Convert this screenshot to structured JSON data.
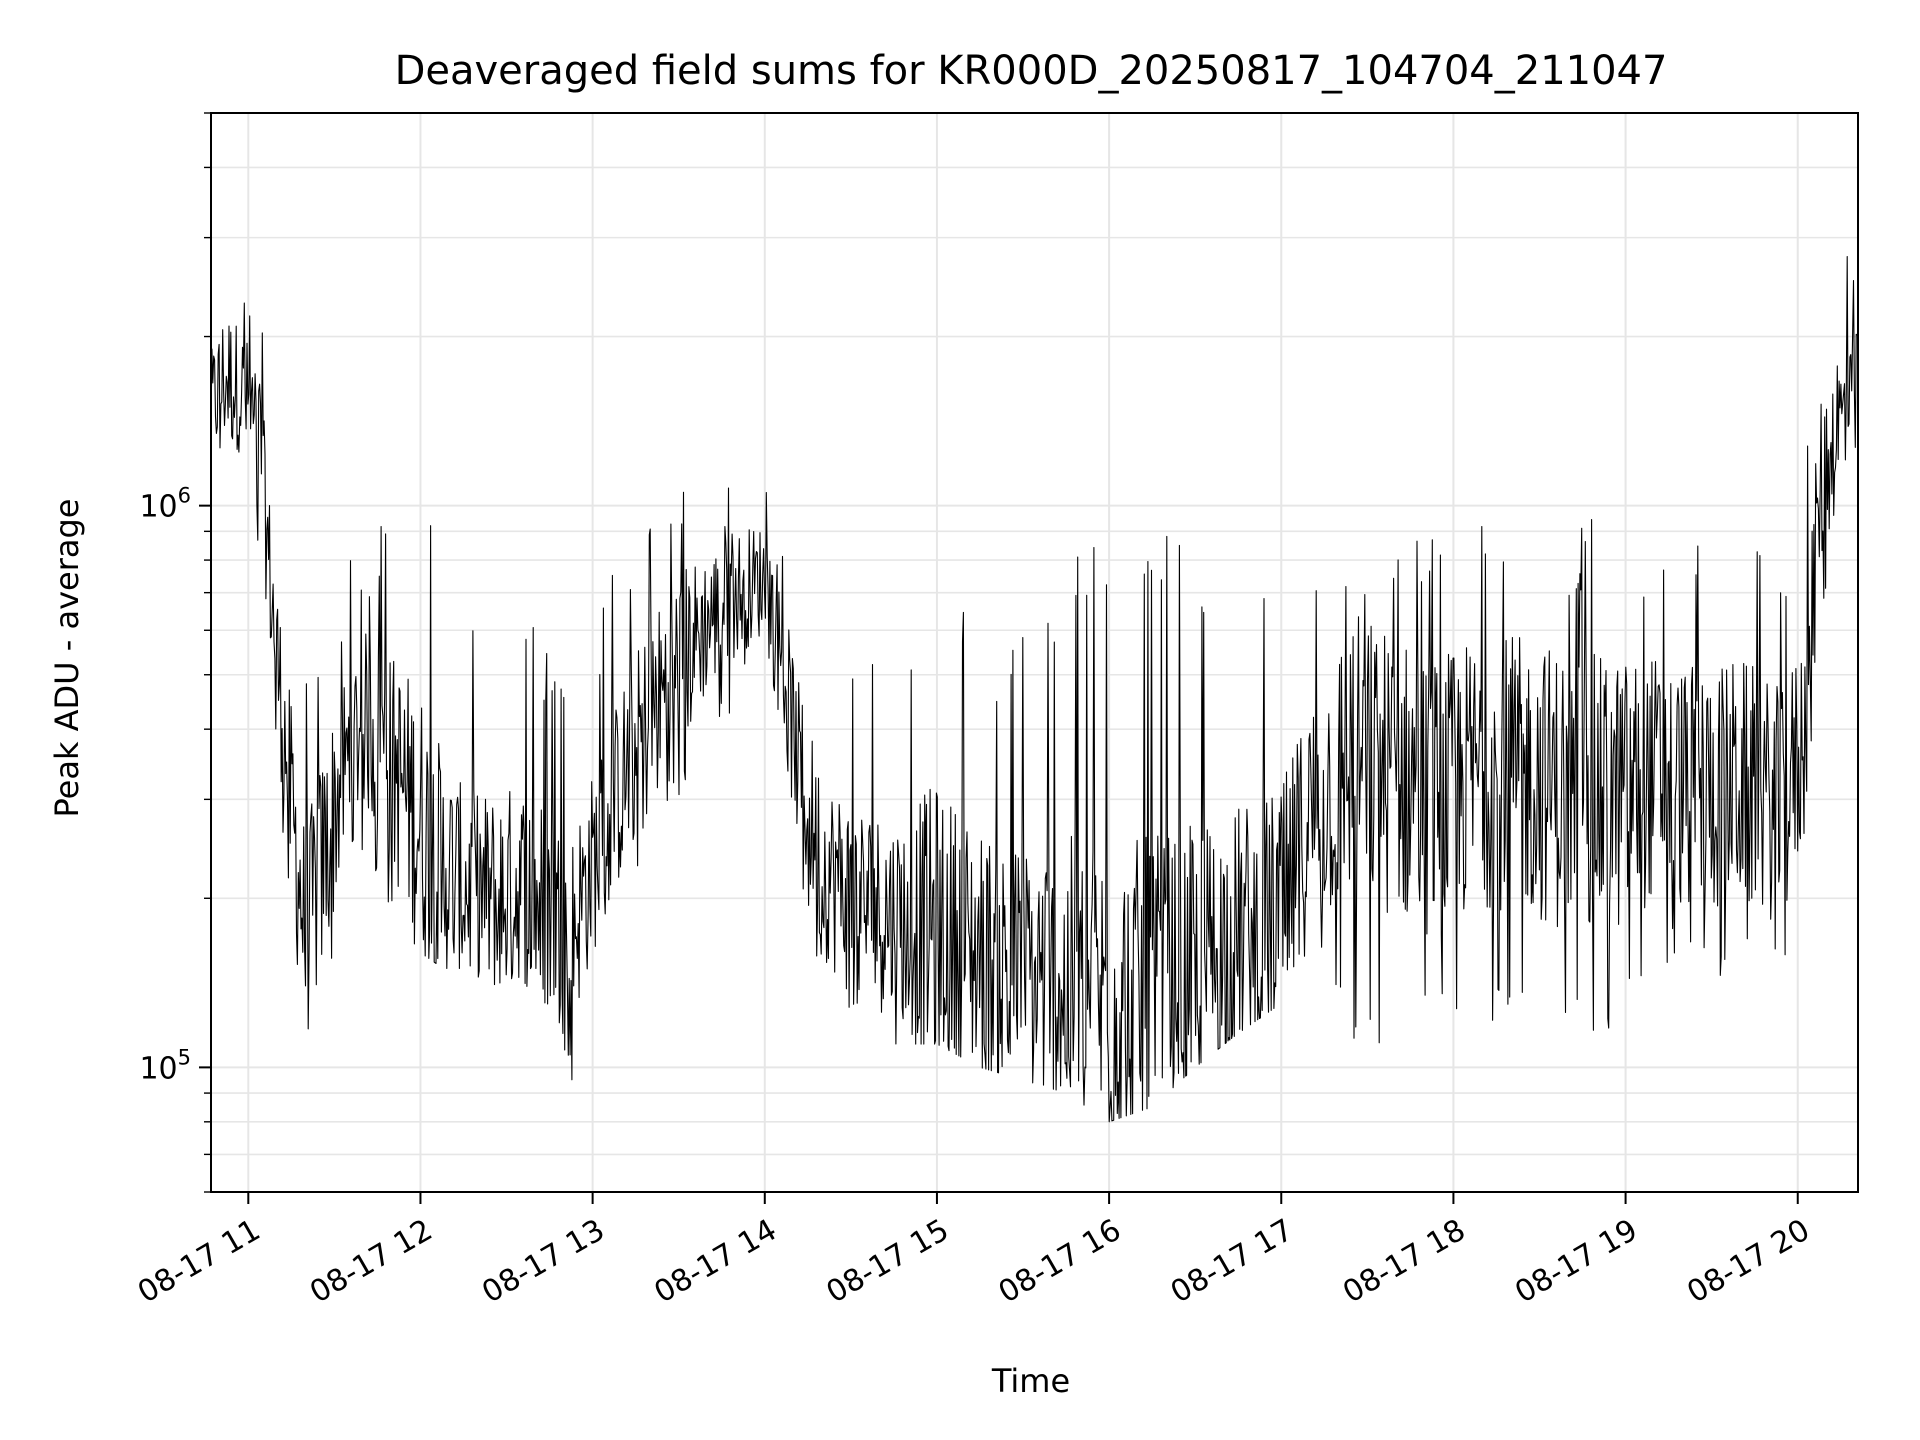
{
  "chart_data": {
    "type": "line",
    "title": "Deaveraged field sums for KR000D_20250817_104704_211047",
    "xlabel": "Time",
    "ylabel": "Peak ADU - average",
    "y_scale": "log",
    "ylim": [
      60000,
      5000000
    ],
    "xlim": [
      "2025-08-17 10:47",
      "2025-08-17 20:21"
    ],
    "grid": true,
    "line_color": "#000000",
    "x_ticks": [
      {
        "t": "2025-08-17 11:00",
        "label": "08-17 11"
      },
      {
        "t": "2025-08-17 12:00",
        "label": "08-17 12"
      },
      {
        "t": "2025-08-17 13:00",
        "label": "08-17 13"
      },
      {
        "t": "2025-08-17 14:00",
        "label": "08-17 14"
      },
      {
        "t": "2025-08-17 15:00",
        "label": "08-17 15"
      },
      {
        "t": "2025-08-17 16:00",
        "label": "08-17 16"
      },
      {
        "t": "2025-08-17 17:00",
        "label": "08-17 17"
      },
      {
        "t": "2025-08-17 18:00",
        "label": "08-17 18"
      },
      {
        "t": "2025-08-17 19:00",
        "label": "08-17 19"
      },
      {
        "t": "2025-08-17 20:00",
        "label": "08-17 20"
      }
    ],
    "y_ticks": [
      {
        "value": 100000,
        "base": "10",
        "exp": "5"
      },
      {
        "value": 1000000,
        "base": "10",
        "exp": "6"
      }
    ],
    "series": [
      {
        "style": "noisy line with dense minute-level spikes",
        "x": [
          "2025-08-17 10:47",
          "2025-08-17 10:52",
          "2025-08-17 10:58",
          "2025-08-17 11:04",
          "2025-08-17 11:08",
          "2025-08-17 11:12",
          "2025-08-17 11:16",
          "2025-08-17 11:20",
          "2025-08-17 11:26",
          "2025-08-17 11:32",
          "2025-08-17 11:40",
          "2025-08-17 11:50",
          "2025-08-17 12:00",
          "2025-08-17 12:08",
          "2025-08-17 12:15",
          "2025-08-17 12:25",
          "2025-08-17 12:35",
          "2025-08-17 12:45",
          "2025-08-17 12:52",
          "2025-08-17 13:00",
          "2025-08-17 13:10",
          "2025-08-17 13:20",
          "2025-08-17 13:30",
          "2025-08-17 13:40",
          "2025-08-17 13:50",
          "2025-08-17 14:00",
          "2025-08-17 14:05",
          "2025-08-17 14:12",
          "2025-08-17 14:20",
          "2025-08-17 14:30",
          "2025-08-17 14:45",
          "2025-08-17 15:00",
          "2025-08-17 15:15",
          "2025-08-17 15:30",
          "2025-08-17 15:45",
          "2025-08-17 16:00",
          "2025-08-17 16:15",
          "2025-08-17 16:30",
          "2025-08-17 16:45",
          "2025-08-17 17:00",
          "2025-08-17 17:10",
          "2025-08-17 17:25",
          "2025-08-17 17:40",
          "2025-08-17 17:55",
          "2025-08-17 18:10",
          "2025-08-17 18:25",
          "2025-08-17 18:40",
          "2025-08-17 18:55",
          "2025-08-17 19:10",
          "2025-08-17 19:25",
          "2025-08-17 19:40",
          "2025-08-17 19:55",
          "2025-08-17 20:02",
          "2025-08-17 20:08",
          "2025-08-17 20:14",
          "2025-08-17 20:21"
        ],
        "y": [
          1500000,
          1700000,
          1600000,
          1300000,
          700000,
          420000,
          260000,
          170000,
          230000,
          320000,
          420000,
          350000,
          270000,
          230000,
          210000,
          200000,
          210000,
          190000,
          170000,
          230000,
          320000,
          420000,
          520000,
          620000,
          700000,
          740000,
          560000,
          340000,
          230000,
          200000,
          185000,
          175000,
          160000,
          150000,
          140000,
          130000,
          135000,
          150000,
          170000,
          185000,
          280000,
          360000,
          330000,
          300000,
          340000,
          330000,
          310000,
          300000,
          330000,
          310000,
          320000,
          290000,
          380000,
          1100000,
          1400000,
          1500000
        ],
        "lows": [
          1100000,
          1200000,
          1100000,
          800000,
          450000,
          260000,
          130000,
          110000,
          120000,
          180000,
          240000,
          190000,
          160000,
          150000,
          150000,
          140000,
          145000,
          120000,
          90000,
          150000,
          200000,
          250000,
          300000,
          380000,
          430000,
          470000,
          300000,
          200000,
          140000,
          120000,
          110000,
          110000,
          100000,
          95000,
          90000,
          80000,
          85000,
          100000,
          115000,
          130000,
          160000,
          105000,
          110000,
          115000,
          120000,
          120000,
          110000,
          115000,
          150000,
          150000,
          140000,
          150000,
          200000,
          600000,
          900000,
          1000000
        ],
        "highs": [
          2500000,
          3600000,
          2800000,
          2600000,
          1400000,
          900000,
          650000,
          550000,
          650000,
          800000,
          900000,
          1000000,
          1300000,
          800000,
          650000,
          700000,
          700000,
          600000,
          420000,
          600000,
          850000,
          1100000,
          1300000,
          1100000,
          1100000,
          1100000,
          900000,
          700000,
          550000,
          550000,
          500000,
          1000000,
          650000,
          600000,
          850000,
          900000,
          900000,
          850000,
          850000,
          900000,
          950000,
          950000,
          950000,
          950000,
          950000,
          950000,
          950000,
          950000,
          950000,
          950000,
          950000,
          850000,
          1100000,
          2200000,
          3000000,
          3200000
        ]
      }
    ]
  }
}
